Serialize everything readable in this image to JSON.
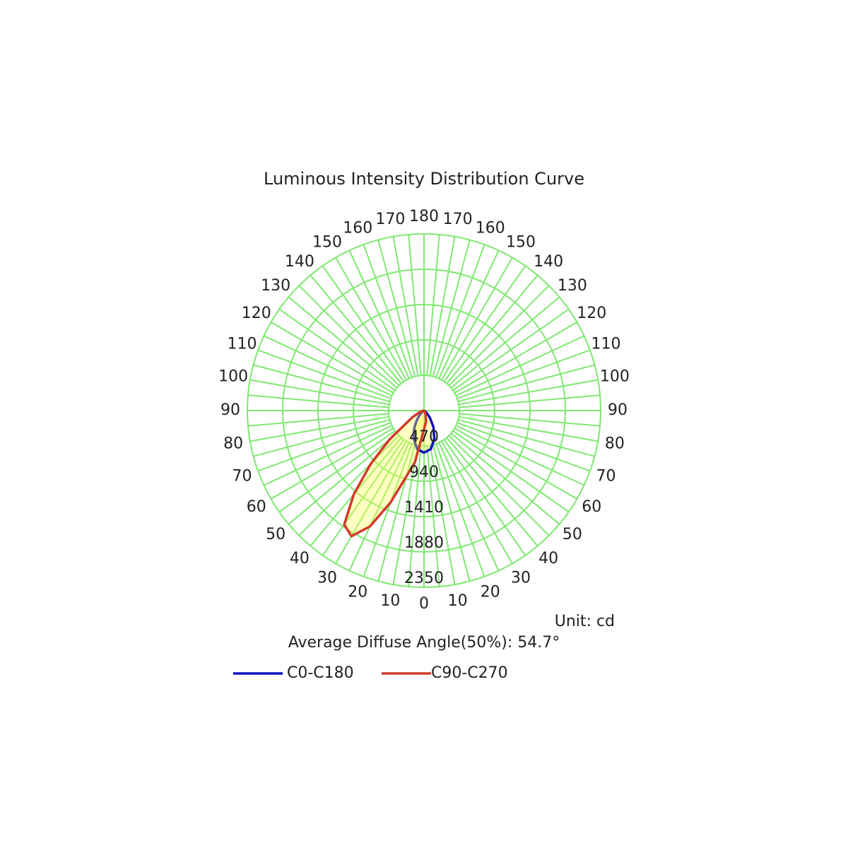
{
  "chart_data": {
    "type": "polar",
    "title": "Luminous Intensity Distribution Curve",
    "unit": "Unit: cd",
    "note": "Average Diffuse Angle(50%): 54.7°",
    "rlim": [
      0,
      2350
    ],
    "rticks": [
      470,
      940,
      1410,
      1880,
      2350
    ],
    "angle_ticks": [
      0,
      10,
      20,
      30,
      40,
      50,
      60,
      70,
      80,
      90,
      100,
      110,
      120,
      130,
      140,
      150,
      160,
      170,
      180
    ],
    "grid_color": "#7fe870",
    "angles": [
      -90,
      -80,
      -70,
      -60,
      -50,
      -45,
      -40,
      -35,
      -30,
      -25,
      -20,
      -10,
      0,
      10,
      20,
      30,
      40,
      50,
      60,
      70,
      80,
      90
    ],
    "series": [
      {
        "name": "C0-C180",
        "color": "#1010c0",
        "values": [
          0,
          0,
          0,
          0,
          40,
          80,
          120,
          180,
          250,
          320,
          400,
          520,
          560,
          520,
          400,
          250,
          120,
          40,
          0,
          0,
          0,
          0
        ]
      },
      {
        "name": "C90-C270",
        "color": "#d23a2a",
        "values": [
          0,
          20,
          60,
          180,
          600,
          1000,
          1450,
          1850,
          1930,
          1700,
          1300,
          700,
          250,
          150,
          60,
          20,
          0,
          0,
          0,
          0,
          0,
          0
        ]
      }
    ]
  }
}
